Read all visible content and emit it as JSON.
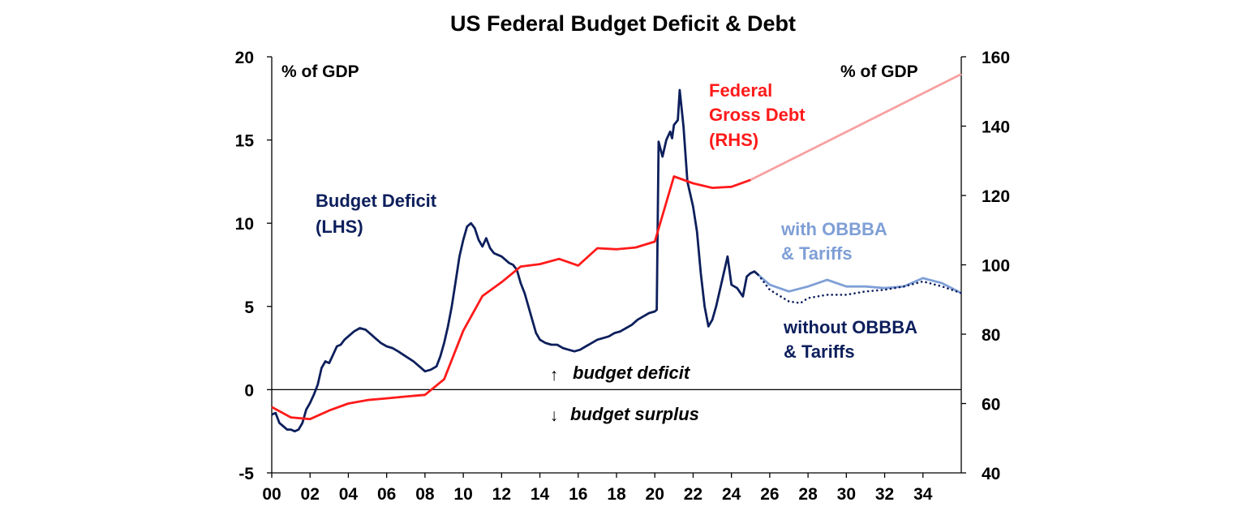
{
  "chart_data": {
    "type": "line",
    "title": "US Federal Budget Deficit & Debt",
    "left_axis": {
      "unit_label": "% of GDP",
      "ylim": [
        -5,
        20
      ],
      "ticks": [
        "20",
        "15",
        "10",
        "5",
        "0",
        "-5"
      ]
    },
    "right_axis": {
      "unit_label": "% of GDP",
      "ylim": [
        40,
        160
      ],
      "ticks": [
        "160",
        "140",
        "120",
        "100",
        "80",
        "60",
        "40"
      ]
    },
    "x_axis": {
      "xlim": [
        2000,
        2036
      ],
      "ticks": [
        "00",
        "02",
        "04",
        "06",
        "08",
        "10",
        "12",
        "14",
        "16",
        "18",
        "20",
        "22",
        "24",
        "26",
        "28",
        "30",
        "32",
        "34"
      ]
    },
    "series": [
      {
        "name": "Budget Deficit (LHS)",
        "axis": "left",
        "color": "#0d1f5c",
        "points": [
          [
            2000.0,
            -1.5
          ],
          [
            2000.2,
            -1.4
          ],
          [
            2000.4,
            -2.0
          ],
          [
            2000.6,
            -2.2
          ],
          [
            2000.8,
            -2.4
          ],
          [
            2001.0,
            -2.4
          ],
          [
            2001.2,
            -2.5
          ],
          [
            2001.4,
            -2.4
          ],
          [
            2001.6,
            -2.0
          ],
          [
            2001.8,
            -1.2
          ],
          [
            2002.0,
            -0.8
          ],
          [
            2002.2,
            -0.3
          ],
          [
            2002.4,
            0.3
          ],
          [
            2002.6,
            1.3
          ],
          [
            2002.8,
            1.7
          ],
          [
            2003.0,
            1.6
          ],
          [
            2003.2,
            2.1
          ],
          [
            2003.4,
            2.6
          ],
          [
            2003.6,
            2.7
          ],
          [
            2003.8,
            3.0
          ],
          [
            2004.0,
            3.2
          ],
          [
            2004.3,
            3.5
          ],
          [
            2004.6,
            3.7
          ],
          [
            2004.9,
            3.6
          ],
          [
            2005.1,
            3.4
          ],
          [
            2005.4,
            3.1
          ],
          [
            2005.7,
            2.8
          ],
          [
            2006.0,
            2.6
          ],
          [
            2006.3,
            2.5
          ],
          [
            2006.6,
            2.3
          ],
          [
            2007.0,
            2.0
          ],
          [
            2007.4,
            1.7
          ],
          [
            2007.8,
            1.3
          ],
          [
            2008.0,
            1.1
          ],
          [
            2008.3,
            1.2
          ],
          [
            2008.6,
            1.4
          ],
          [
            2008.8,
            2.0
          ],
          [
            2009.0,
            2.8
          ],
          [
            2009.2,
            3.8
          ],
          [
            2009.4,
            5.0
          ],
          [
            2009.6,
            6.5
          ],
          [
            2009.8,
            8.0
          ],
          [
            2010.0,
            9.0
          ],
          [
            2010.2,
            9.8
          ],
          [
            2010.4,
            10.0
          ],
          [
            2010.6,
            9.7
          ],
          [
            2010.8,
            9.0
          ],
          [
            2011.0,
            8.6
          ],
          [
            2011.2,
            9.1
          ],
          [
            2011.4,
            8.5
          ],
          [
            2011.6,
            8.2
          ],
          [
            2011.8,
            8.1
          ],
          [
            2012.0,
            8.0
          ],
          [
            2012.2,
            7.8
          ],
          [
            2012.4,
            7.6
          ],
          [
            2012.6,
            7.5
          ],
          [
            2012.8,
            7.2
          ],
          [
            2013.0,
            6.4
          ],
          [
            2013.2,
            5.8
          ],
          [
            2013.4,
            5.0
          ],
          [
            2013.6,
            4.2
          ],
          [
            2013.8,
            3.4
          ],
          [
            2014.0,
            3.0
          ],
          [
            2014.3,
            2.8
          ],
          [
            2014.6,
            2.7
          ],
          [
            2014.9,
            2.7
          ],
          [
            2015.2,
            2.5
          ],
          [
            2015.5,
            2.4
          ],
          [
            2015.8,
            2.3
          ],
          [
            2016.1,
            2.4
          ],
          [
            2016.4,
            2.6
          ],
          [
            2016.7,
            2.8
          ],
          [
            2017.0,
            3.0
          ],
          [
            2017.3,
            3.1
          ],
          [
            2017.6,
            3.2
          ],
          [
            2017.9,
            3.4
          ],
          [
            2018.2,
            3.5
          ],
          [
            2018.5,
            3.7
          ],
          [
            2018.8,
            3.9
          ],
          [
            2019.1,
            4.2
          ],
          [
            2019.4,
            4.4
          ],
          [
            2019.7,
            4.6
          ],
          [
            2020.0,
            4.7
          ],
          [
            2020.1,
            4.8
          ],
          [
            2020.2,
            14.9
          ],
          [
            2020.4,
            14.0
          ],
          [
            2020.6,
            15.0
          ],
          [
            2020.8,
            15.5
          ],
          [
            2020.9,
            15.1
          ],
          [
            2021.0,
            15.9
          ],
          [
            2021.2,
            16.2
          ],
          [
            2021.3,
            18.0
          ],
          [
            2021.5,
            15.8
          ],
          [
            2021.7,
            12.5
          ],
          [
            2021.9,
            11.5
          ],
          [
            2022.0,
            11.0
          ],
          [
            2022.2,
            9.5
          ],
          [
            2022.4,
            7.0
          ],
          [
            2022.6,
            5.0
          ],
          [
            2022.8,
            3.8
          ],
          [
            2023.0,
            4.2
          ],
          [
            2023.2,
            5.0
          ],
          [
            2023.4,
            6.0
          ],
          [
            2023.6,
            7.0
          ],
          [
            2023.8,
            8.0
          ],
          [
            2024.0,
            6.3
          ],
          [
            2024.3,
            6.1
          ],
          [
            2024.6,
            5.6
          ],
          [
            2024.8,
            6.8
          ],
          [
            2025.0,
            7.0
          ],
          [
            2025.2,
            7.1
          ],
          [
            2025.4,
            6.9
          ]
        ]
      },
      {
        "name": "with OBBBA & Tariffs",
        "axis": "left",
        "color": "#7f9fd6",
        "points": [
          [
            2025.4,
            6.9
          ],
          [
            2026.0,
            6.3
          ],
          [
            2027.0,
            5.9
          ],
          [
            2028.0,
            6.2
          ],
          [
            2029.0,
            6.6
          ],
          [
            2030.0,
            6.2
          ],
          [
            2031.0,
            6.2
          ],
          [
            2032.0,
            6.1
          ],
          [
            2033.0,
            6.2
          ],
          [
            2034.0,
            6.7
          ],
          [
            2035.0,
            6.4
          ],
          [
            2036.0,
            5.8
          ]
        ]
      },
      {
        "name": "without OBBBA & Tariffs",
        "axis": "left",
        "color": "#0d1f5c",
        "dashed": true,
        "points": [
          [
            2025.4,
            6.9
          ],
          [
            2026.0,
            6.0
          ],
          [
            2027.0,
            5.3
          ],
          [
            2027.6,
            5.2
          ],
          [
            2028.0,
            5.5
          ],
          [
            2029.0,
            5.7
          ],
          [
            2030.0,
            5.7
          ],
          [
            2031.0,
            5.9
          ],
          [
            2032.0,
            6.0
          ],
          [
            2033.0,
            6.2
          ],
          [
            2034.0,
            6.5
          ],
          [
            2035.0,
            6.2
          ],
          [
            2036.0,
            5.8
          ]
        ]
      },
      {
        "name": "Federal Gross Debt (RHS)",
        "axis": "right",
        "color": "#ff1a1a",
        "points": [
          [
            2000.0,
            59
          ],
          [
            2001.0,
            56
          ],
          [
            2002.0,
            55.5
          ],
          [
            2003.0,
            58
          ],
          [
            2004.0,
            60
          ],
          [
            2005.0,
            61
          ],
          [
            2006.0,
            61.5
          ],
          [
            2007.0,
            62
          ],
          [
            2008.0,
            62.5
          ],
          [
            2009.0,
            67
          ],
          [
            2010.0,
            81
          ],
          [
            2011.0,
            91
          ],
          [
            2012.0,
            95
          ],
          [
            2013.0,
            99.5
          ],
          [
            2014.0,
            100.2
          ],
          [
            2015.0,
            101.7
          ],
          [
            2016.0,
            99.8
          ],
          [
            2017.0,
            104.8
          ],
          [
            2018.0,
            104.5
          ],
          [
            2019.0,
            105
          ],
          [
            2020.0,
            106.7
          ],
          [
            2021.0,
            125.5
          ],
          [
            2022.0,
            123.5
          ],
          [
            2023.0,
            122.2
          ],
          [
            2024.0,
            122.5
          ],
          [
            2025.0,
            124.5
          ]
        ]
      },
      {
        "name": "Federal Gross Debt projection",
        "axis": "right",
        "color": "#f7a1a1",
        "points": [
          [
            2025.0,
            124.5
          ],
          [
            2036.0,
            155
          ]
        ]
      }
    ],
    "annotations": {
      "deficit_label_line1": "Budget Deficit",
      "deficit_label_line2": "(LHS)",
      "debt_label_line1": "Federal",
      "debt_label_line2": "Gross Debt",
      "debt_label_line3": "(RHS)",
      "with_label_line1": "with OBBBA",
      "with_label_line2": "& Tariffs",
      "without_label_line1": "without OBBBA",
      "without_label_line2": "& Tariffs",
      "budget_deficit": "budget deficit",
      "budget_surplus": "budget surplus",
      "arrow_up": "↑",
      "arrow_down": "↓"
    }
  }
}
